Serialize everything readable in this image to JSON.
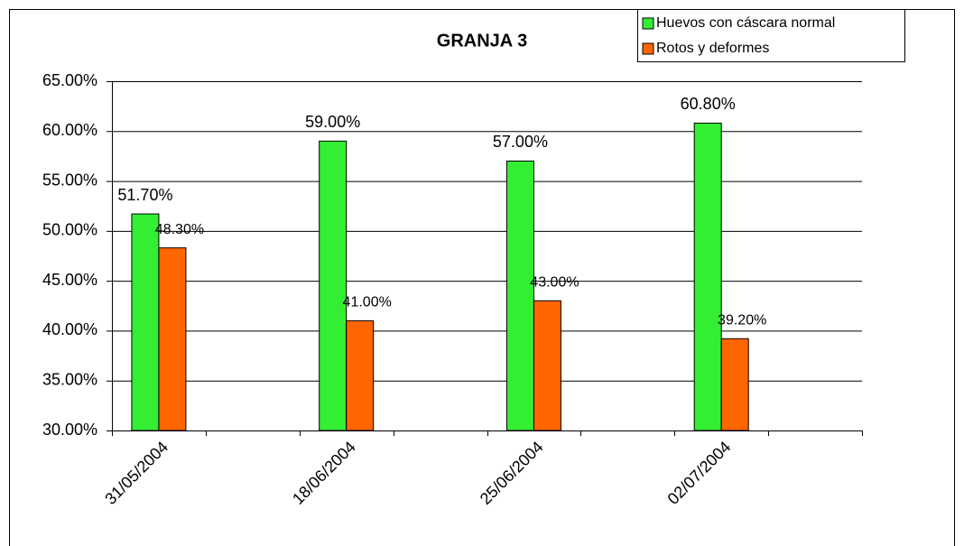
{
  "chart_data": {
    "type": "bar",
    "title": "GRANJA 3",
    "categories": [
      "31/05/2004",
      null,
      "18/06/2004",
      null,
      "25/06/2004",
      null,
      "02/07/2004",
      null
    ],
    "series": [
      {
        "name": "Huevos con cáscara normal",
        "color": "#33ee33",
        "values": [
          51.7,
          null,
          59.0,
          null,
          57.0,
          null,
          60.8,
          null
        ],
        "value_labels": [
          "51.70%",
          null,
          "59.00%",
          null,
          "57.00%",
          null,
          "60.80%",
          null
        ]
      },
      {
        "name": "Rotos y deformes",
        "color": "#ff6600",
        "values": [
          48.3,
          null,
          41.0,
          null,
          43.0,
          null,
          39.2,
          null
        ],
        "value_labels": [
          "48.30%",
          null,
          "41.00%",
          null,
          "43.00%",
          null,
          "39.20%",
          null
        ]
      }
    ],
    "ylim": [
      30,
      65
    ],
    "yticks": [
      {
        "value": 30,
        "label": "30.00%"
      },
      {
        "value": 35,
        "label": "35.00%"
      },
      {
        "value": 40,
        "label": "40.00%"
      },
      {
        "value": 45,
        "label": "45.00%"
      },
      {
        "value": 50,
        "label": "50.00%"
      },
      {
        "value": 55,
        "label": "55.00%"
      },
      {
        "value": 60,
        "label": "60.00%"
      },
      {
        "value": 65,
        "label": "65.00%"
      }
    ],
    "grid": true,
    "legend": "top-right"
  }
}
